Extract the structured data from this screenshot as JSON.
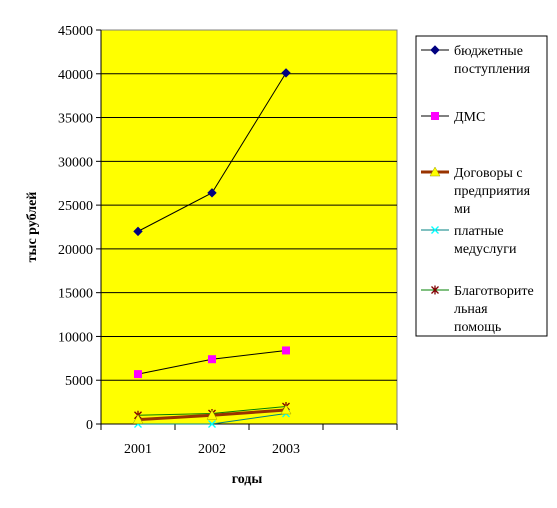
{
  "chart_data": {
    "type": "line",
    "title": "",
    "xlabel": "годы",
    "ylabel": "тыс рублей",
    "categories": [
      "2001",
      "2002",
      "2003"
    ],
    "ylim": [
      0,
      45000
    ],
    "yticks": [
      "0",
      "5000",
      "10000",
      "15000",
      "20000",
      "25000",
      "30000",
      "35000",
      "40000",
      "45000"
    ],
    "grid": "horizontal",
    "legend_position": "right",
    "plot_background": "#ffff00",
    "series": [
      {
        "name": "бюджетные поступления",
        "legend_lines": [
          "бюджетные",
          "поступления"
        ],
        "values": [
          22000,
          26400,
          40100
        ],
        "color": "#000000",
        "marker_color": "#000080",
        "marker": "diamond",
        "stroke_width": 1
      },
      {
        "name": "ДМС",
        "legend_lines": [
          "ДМС"
        ],
        "values": [
          5700,
          7400,
          8400
        ],
        "color": "#000000",
        "marker_color": "#ff00ff",
        "marker": "square",
        "stroke_width": 1
      },
      {
        "name": "Договоры с предприятиями",
        "legend_lines": [
          "Договоры с",
          "предприятия",
          "ми"
        ],
        "values": [
          500,
          1000,
          1600
        ],
        "color": "#993300",
        "marker_color": "#ffff00",
        "marker": "triangle",
        "stroke_width": 3
      },
      {
        "name": "платные медуслуги",
        "legend_lines": [
          "платные",
          "медуслуги"
        ],
        "values": [
          0,
          0,
          1200
        ],
        "color": "#008080",
        "marker_color": "#00ffff",
        "marker": "x",
        "stroke_width": 1
      },
      {
        "name": "Благотворительная помощь",
        "legend_lines": [
          "Благотворите",
          "льная",
          "помощь"
        ],
        "values": [
          1000,
          1200,
          2000
        ],
        "color": "#008000",
        "marker_color": "#800000",
        "marker": "star",
        "stroke_width": 1
      }
    ]
  }
}
